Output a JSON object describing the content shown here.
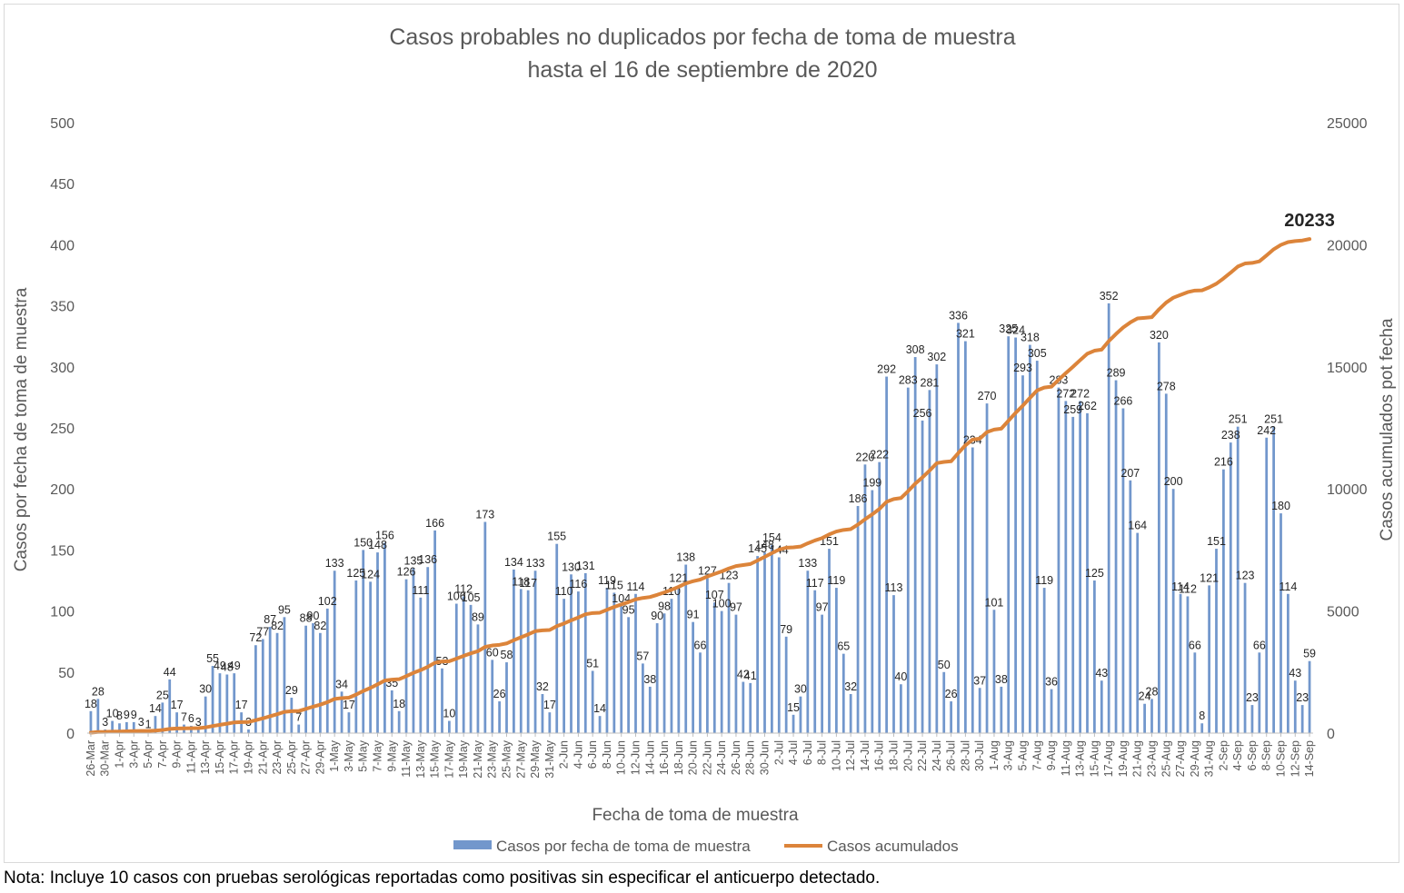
{
  "chart_data": {
    "type": "bar",
    "title": "Casos probables no duplicados por fecha de toma de muestra",
    "subtitle": "hasta el  16 de septiembre de 2020",
    "xlabel": "Fecha de toma de muestra",
    "ylabel": "Casos por fecha de toma de muestra",
    "y2label": "Casos acumulados pot fecha",
    "ylim": [
      0,
      500
    ],
    "y2lim": [
      0,
      25000
    ],
    "yticks": [
      "0",
      "50",
      "100",
      "150",
      "200",
      "250",
      "300",
      "350",
      "400",
      "450",
      "500"
    ],
    "y2ticks": [
      "0",
      "5000",
      "10000",
      "15000",
      "20000",
      "25000"
    ],
    "grid": false,
    "legend_position": "bottom",
    "bar_color": "#7297cc",
    "line_color": "#dc843a",
    "tick_labels": [
      "26-Mar",
      "30-Mar",
      "1-Apr",
      "3-Apr",
      "5-Apr",
      "7-Apr",
      "9-Apr",
      "11-Apr",
      "13-Apr",
      "15-Apr",
      "17-Apr",
      "19-Apr",
      "21-Apr",
      "23-Apr",
      "25-Apr",
      "27-Apr",
      "29-Apr",
      "1-May",
      "3-May",
      "5-May",
      "7-May",
      "9-May",
      "11-May",
      "13-May",
      "15-May",
      "17-May",
      "19-May",
      "21-May",
      "23-May",
      "25-May",
      "27-May",
      "29-May",
      "31-May",
      "2-Jun",
      "4-Jun",
      "6-Jun",
      "8-Jun",
      "10-Jun",
      "12-Jun",
      "14-Jun",
      "16-Jun",
      "18-Jun",
      "20-Jun",
      "22-Jun",
      "24-Jun",
      "26-Jun",
      "28-Jun",
      "30-Jun",
      "2-Jul",
      "4-Jul",
      "6-Jul",
      "8-Jul",
      "10-Jul",
      "12-Jul",
      "14-Jul",
      "16-Jul",
      "18-Jul",
      "20-Jul",
      "22-Jul",
      "24-Jul",
      "26-Jul",
      "28-Jul",
      "30-Jul",
      "1-Aug",
      "3-Aug",
      "5-Aug",
      "7-Aug",
      "9-Aug",
      "11-Aug",
      "13-Aug",
      "15-Aug",
      "17-Aug",
      "19-Aug",
      "21-Aug",
      "23-Aug",
      "25-Aug",
      "27-Aug",
      "29-Aug",
      "31-Aug",
      "2-Sep",
      "4-Sep",
      "6-Sep",
      "8-Sep",
      "10-Sep",
      "12-Sep",
      "14-Sep"
    ],
    "series": [
      {
        "name": "Casos por fecha de toma de muestra",
        "type": "bar",
        "values": [
          18,
          28,
          3,
          10,
          8,
          9,
          9,
          3,
          1,
          14,
          25,
          44,
          17,
          7,
          6,
          3,
          30,
          55,
          49,
          48,
          49,
          17,
          3,
          72,
          77,
          87,
          82,
          95,
          29,
          7,
          88,
          90,
          82,
          102,
          133,
          34,
          17,
          125,
          150,
          124,
          148,
          156,
          35,
          18,
          126,
          135,
          111,
          136,
          166,
          53,
          10,
          106,
          112,
          105,
          89,
          173,
          60,
          26,
          58,
          134,
          118,
          117,
          133,
          32,
          17,
          155,
          110,
          130,
          116,
          131,
          51,
          14,
          119,
          115,
          104,
          95,
          114,
          57,
          38,
          90,
          98,
          110,
          121,
          138,
          91,
          66,
          127,
          107,
          100,
          123,
          97,
          42,
          41,
          145,
          148,
          154,
          144,
          79,
          15,
          30,
          133,
          117,
          97,
          151,
          119,
          65,
          32,
          186,
          220,
          199,
          222,
          292,
          113,
          40,
          283,
          308,
          256,
          281,
          302,
          50,
          26,
          336,
          321,
          234,
          37,
          270,
          101,
          38,
          325,
          324,
          293,
          318,
          305,
          119,
          36,
          283,
          272,
          259,
          272,
          262,
          125,
          43,
          352,
          289,
          266,
          207,
          164,
          24,
          28,
          320,
          278,
          200,
          114,
          112,
          66,
          8,
          121,
          151,
          216,
          238,
          251,
          123,
          23,
          66,
          242,
          251,
          180,
          114,
          43,
          23,
          59
        ]
      },
      {
        "name": "Casos acumulados",
        "type": "line",
        "end_label": "20233"
      }
    ]
  },
  "note": "Nota: Incluye 10 casos con pruebas serológicas reportadas como positivas sin especificar el anticuerpo detectado."
}
